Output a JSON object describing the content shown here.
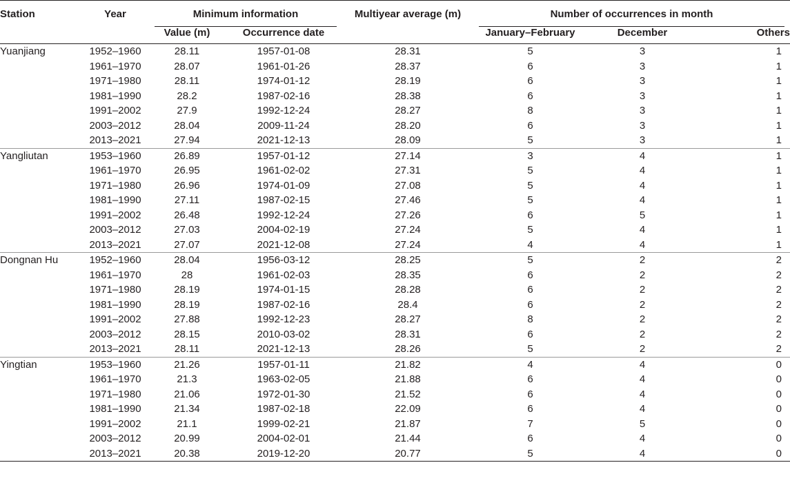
{
  "headers": {
    "station": "Station",
    "year": "Year",
    "minimum_info": "Minimum information",
    "value": "Value (m)",
    "occurrence_date": "Occurrence date",
    "multiyear_avg": "Multiyear average (m)",
    "occurrences": "Number of occurrences in month",
    "jan_feb": "January–February",
    "december": "December",
    "others": "Others"
  },
  "stations": [
    {
      "name": "Yuanjiang",
      "rows": [
        {
          "year": "1952–1960",
          "value": "28.11",
          "date": "1957-01-08",
          "avg": "28.31",
          "janfeb": "5",
          "dec": "3",
          "others": "1"
        },
        {
          "year": "1961–1970",
          "value": "28.07",
          "date": "1961-01-26",
          "avg": "28.37",
          "janfeb": "6",
          "dec": "3",
          "others": "1"
        },
        {
          "year": "1971–1980",
          "value": "28.11",
          "date": "1974-01-12",
          "avg": "28.19",
          "janfeb": "6",
          "dec": "3",
          "others": "1"
        },
        {
          "year": "1981–1990",
          "value": "28.2",
          "date": "1987-02-16",
          "avg": "28.38",
          "janfeb": "6",
          "dec": "3",
          "others": "1"
        },
        {
          "year": "1991–2002",
          "value": "27.9",
          "date": "1992-12-24",
          "avg": "28.27",
          "janfeb": "8",
          "dec": "3",
          "others": "1"
        },
        {
          "year": "2003–2012",
          "value": "28.04",
          "date": "2009-11-24",
          "avg": "28.20",
          "janfeb": "6",
          "dec": "3",
          "others": "1"
        },
        {
          "year": "2013–2021",
          "value": "27.94",
          "date": "2021-12-13",
          "avg": "28.09",
          "janfeb": "5",
          "dec": "3",
          "others": "1"
        }
      ]
    },
    {
      "name": "Yangliutan",
      "rows": [
        {
          "year": "1953–1960",
          "value": "26.89",
          "date": "1957-01-12",
          "avg": "27.14",
          "janfeb": "3",
          "dec": "4",
          "others": "1"
        },
        {
          "year": "1961–1970",
          "value": "26.95",
          "date": "1961-02-02",
          "avg": "27.31",
          "janfeb": "5",
          "dec": "4",
          "others": "1"
        },
        {
          "year": "1971–1980",
          "value": "26.96",
          "date": "1974-01-09",
          "avg": "27.08",
          "janfeb": "5",
          "dec": "4",
          "others": "1"
        },
        {
          "year": "1981–1990",
          "value": "27.11",
          "date": "1987-02-15",
          "avg": "27.46",
          "janfeb": "5",
          "dec": "4",
          "others": "1"
        },
        {
          "year": "1991–2002",
          "value": "26.48",
          "date": "1992-12-24",
          "avg": "27.26",
          "janfeb": "6",
          "dec": "5",
          "others": "1"
        },
        {
          "year": "2003–2012",
          "value": "27.03",
          "date": "2004-02-19",
          "avg": "27.24",
          "janfeb": "5",
          "dec": "4",
          "others": "1"
        },
        {
          "year": "2013–2021",
          "value": "27.07",
          "date": "2021-12-08",
          "avg": "27.24",
          "janfeb": "4",
          "dec": "4",
          "others": "1"
        }
      ]
    },
    {
      "name": "Dongnan Hu",
      "rows": [
        {
          "year": "1952–1960",
          "value": "28.04",
          "date": "1956-03-12",
          "avg": "28.25",
          "janfeb": "5",
          "dec": "2",
          "others": "2"
        },
        {
          "year": "1961–1970",
          "value": "28",
          "date": "1961-02-03",
          "avg": "28.35",
          "janfeb": "6",
          "dec": "2",
          "others": "2"
        },
        {
          "year": "1971–1980",
          "value": "28.19",
          "date": "1974-01-15",
          "avg": "28.28",
          "janfeb": "6",
          "dec": "2",
          "others": "2"
        },
        {
          "year": "1981–1990",
          "value": "28.19",
          "date": "1987-02-16",
          "avg": "28.4",
          "janfeb": "6",
          "dec": "2",
          "others": "2"
        },
        {
          "year": "1991–2002",
          "value": "27.88",
          "date": "1992-12-23",
          "avg": "28.27",
          "janfeb": "8",
          "dec": "2",
          "others": "2"
        },
        {
          "year": "2003–2012",
          "value": "28.15",
          "date": "2010-03-02",
          "avg": "28.31",
          "janfeb": "6",
          "dec": "2",
          "others": "2"
        },
        {
          "year": "2013–2021",
          "value": "28.11",
          "date": "2021-12-13",
          "avg": "28.26",
          "janfeb": "5",
          "dec": "2",
          "others": "2"
        }
      ]
    },
    {
      "name": "Yingtian",
      "rows": [
        {
          "year": "1953–1960",
          "value": "21.26",
          "date": "1957-01-11",
          "avg": "21.82",
          "janfeb": "4",
          "dec": "4",
          "others": "0"
        },
        {
          "year": "1961–1970",
          "value": "21.3",
          "date": "1963-02-05",
          "avg": "21.88",
          "janfeb": "6",
          "dec": "4",
          "others": "0"
        },
        {
          "year": "1971–1980",
          "value": "21.06",
          "date": "1972-01-30",
          "avg": "21.52",
          "janfeb": "6",
          "dec": "4",
          "others": "0"
        },
        {
          "year": "1981–1990",
          "value": "21.34",
          "date": "1987-02-18",
          "avg": "22.09",
          "janfeb": "6",
          "dec": "4",
          "others": "0"
        },
        {
          "year": "1991–2002",
          "value": "21.1",
          "date": "1999-02-21",
          "avg": "21.87",
          "janfeb": "7",
          "dec": "5",
          "others": "0"
        },
        {
          "year": "2003–2012",
          "value": "20.99",
          "date": "2004-02-01",
          "avg": "21.44",
          "janfeb": "6",
          "dec": "4",
          "others": "0"
        },
        {
          "year": "2013–2021",
          "value": "20.38",
          "date": "2019-12-20",
          "avg": "20.77",
          "janfeb": "5",
          "dec": "4",
          "others": "0"
        }
      ]
    }
  ]
}
